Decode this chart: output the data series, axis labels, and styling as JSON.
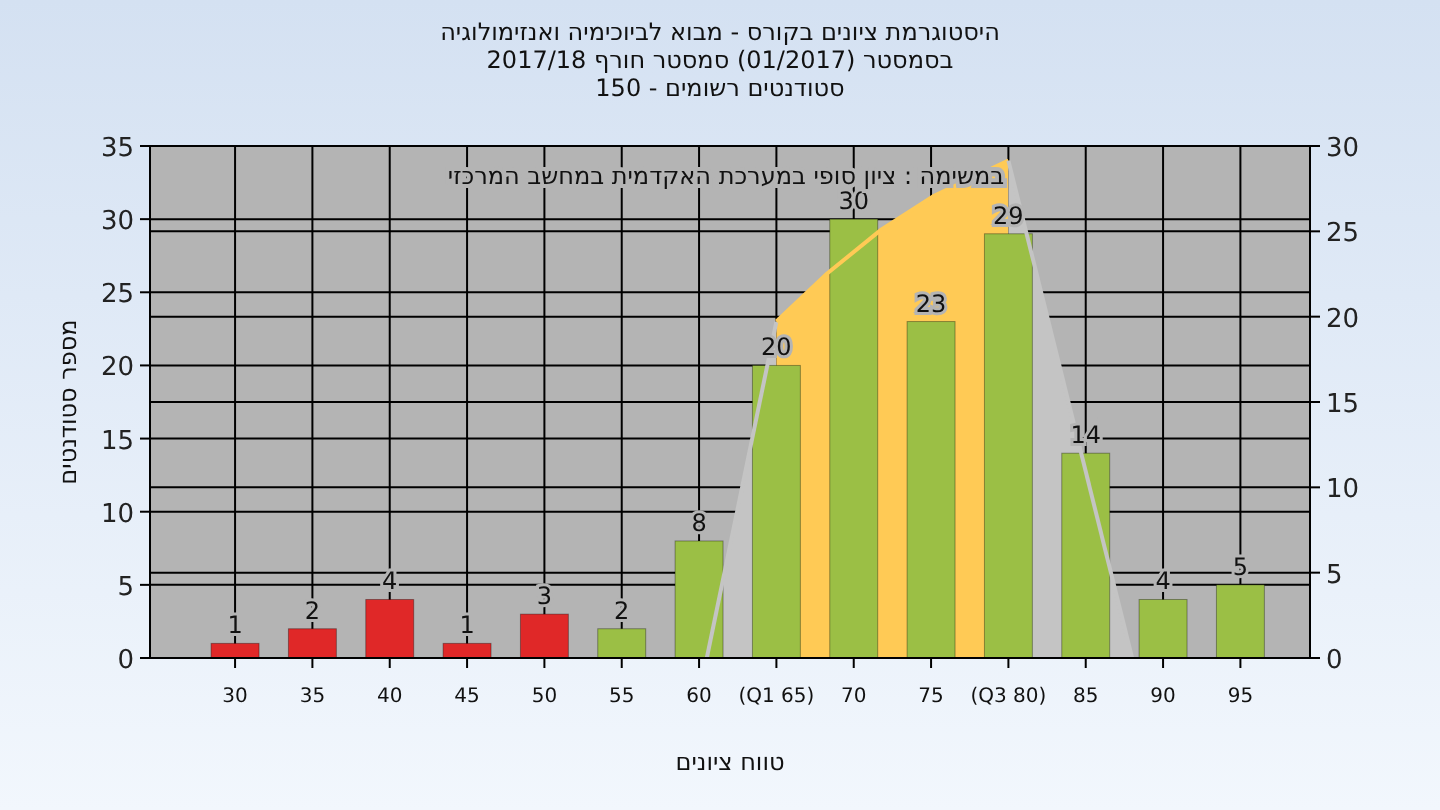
{
  "chart_data": {
    "type": "bar",
    "title": "היסטוגרמת ציונים בקורס - מבוא לביוכימיה ואנזימולוגיה",
    "subtitle": "בסמסטר (01/2017) סמסטר חורף 2017/18\nסטודנטים רשומים - 150",
    "xlabel": "טווח ציונים",
    "ylabel": "מספר סטודנטים",
    "annotations": [
      "במשימה : ציון סופי במערכת האקדמית במחשב המרכזי"
    ],
    "series": [
      {
        "type": "area",
        "color": "#c4c4c4",
        "x": [
          60.5,
          65
        ],
        "values": [
          0,
          23
        ]
      },
      {
        "type": "area",
        "color": "#ffca55",
        "x": [
          65,
          68.3,
          71.8,
          75.2,
          80
        ],
        "values": [
          23,
          26.3,
          29.3,
          31.6,
          34
        ]
      },
      {
        "type": "area",
        "color": "#c4c4c4",
        "x": [
          80,
          88
        ],
        "values": [
          34,
          0
        ]
      },
      {
        "x": [
          30,
          35,
          40,
          45,
          50,
          55,
          60,
          65,
          70,
          75,
          80,
          85,
          90,
          95
        ],
        "values": [
          1,
          2,
          4,
          1,
          3,
          2,
          8,
          20,
          30,
          23,
          29,
          14,
          4,
          5
        ],
        "value_labels": [
          "1",
          "2",
          "4",
          "1",
          "3",
          "2",
          "8",
          "20",
          "30",
          "23",
          "29",
          "14",
          "4",
          "5"
        ],
        "colors": [
          "#e02828",
          "#e02828",
          "#e02828",
          "#e02828",
          "#e02828",
          "#9bbf45",
          "#9bbf45",
          "#9bbf45",
          "#9bbf45",
          "#9bbf45",
          "#9bbf45",
          "#9bbf45",
          "#9bbf45",
          "#9bbf45"
        ]
      }
    ],
    "xlim": [
      24.5,
      99.5
    ],
    "xticks": [
      30,
      35,
      40,
      45,
      50,
      55,
      60,
      {
        "value": 65,
        "label": "(Q1 65)"
      },
      70,
      75,
      {
        "value": 80,
        "label": "(Q3 80)"
      },
      85,
      90,
      95
    ],
    "ylim": [
      0,
      35
    ],
    "yticks": [
      0,
      5,
      10,
      15,
      20,
      25,
      30,
      35
    ],
    "y2lim": [
      0,
      30
    ],
    "y2ticks": [
      0,
      5,
      10,
      15,
      20,
      25,
      30
    ],
    "grid": true
  }
}
